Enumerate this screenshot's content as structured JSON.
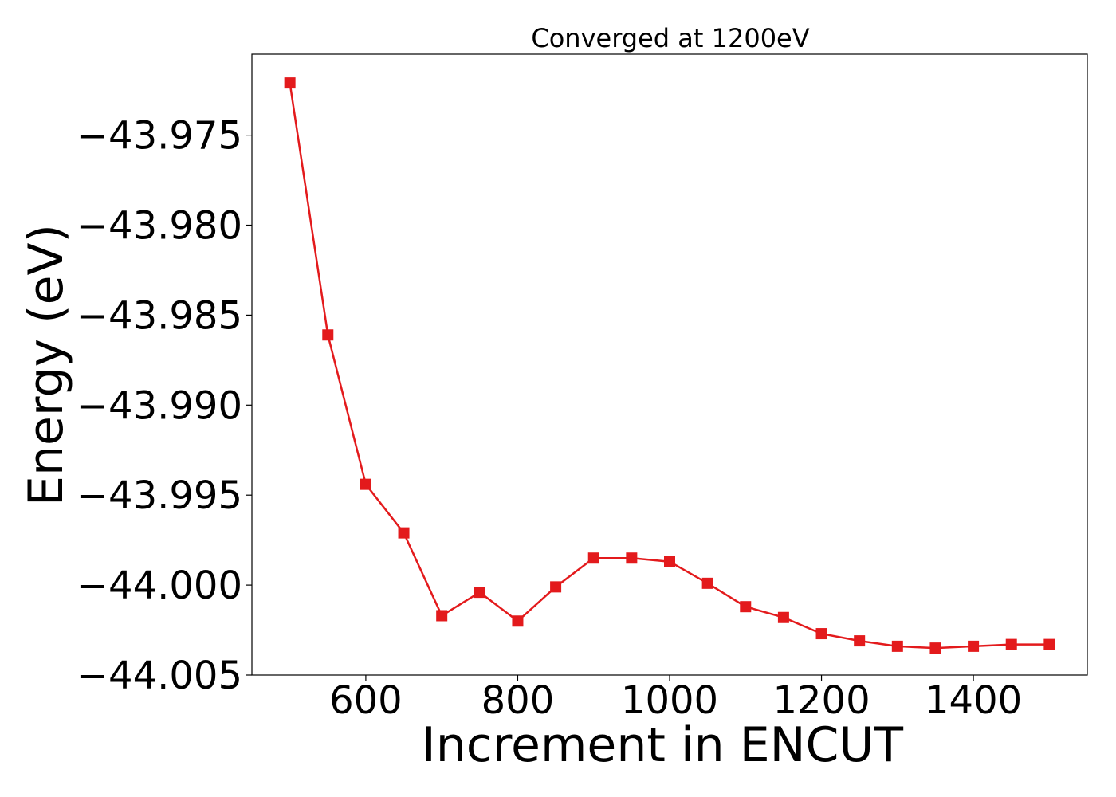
{
  "chart_data": {
    "type": "line",
    "title": "Converged at 1200eV",
    "xlabel": "Increment in ENCUT",
    "ylabel": "Energy (eV)",
    "xlim": [
      450,
      1550
    ],
    "ylim": [
      -44.005,
      -43.9705
    ],
    "xticks": [
      600,
      800,
      1000,
      1200,
      1400
    ],
    "xtick_labels": [
      "600",
      "800",
      "1000",
      "1200",
      "1400"
    ],
    "yticks": [
      -43.975,
      -43.98,
      -43.985,
      -43.99,
      -43.995,
      -44.0,
      -44.005
    ],
    "ytick_labels": [
      "−43.975",
      "−43.980",
      "−43.985",
      "−43.990",
      "−43.995",
      "−44.000",
      "−44.005"
    ],
    "grid": false,
    "series": [
      {
        "color": "#e31a1c",
        "marker": "square",
        "x": [
          500,
          550,
          600,
          650,
          700,
          750,
          800,
          850,
          900,
          950,
          1000,
          1050,
          1100,
          1150,
          1200,
          1250,
          1300,
          1350,
          1400,
          1450,
          1500
        ],
        "y": [
          -43.9721,
          -43.9861,
          -43.9944,
          -43.9971,
          -44.0017,
          -44.0004,
          -44.002,
          -44.0001,
          -43.9985,
          -43.9985,
          -43.9987,
          -43.9999,
          -44.0012,
          -44.0018,
          -44.0027,
          -44.0031,
          -44.0034,
          -44.0035,
          -44.0034,
          -44.0033,
          -44.0033
        ]
      }
    ]
  }
}
